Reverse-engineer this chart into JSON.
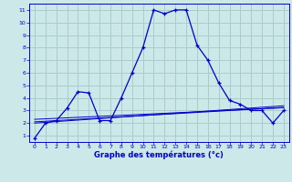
{
  "title": "Graphe des températures (°c)",
  "bg_color": "#cce8e8",
  "grid_color": "#aacccc",
  "line_color": "#0000cc",
  "x_values": [
    0,
    1,
    2,
    3,
    4,
    5,
    6,
    7,
    8,
    9,
    10,
    11,
    12,
    13,
    14,
    15,
    16,
    17,
    18,
    19,
    20,
    21,
    22,
    23
  ],
  "y_main": [
    0.8,
    2.0,
    2.2,
    3.2,
    4.5,
    4.4,
    2.2,
    2.2,
    4.0,
    6.0,
    8.0,
    11.0,
    10.7,
    11.0,
    11.0,
    8.2,
    7.0,
    5.2,
    3.8,
    3.5,
    3.0,
    3.0,
    2.0,
    3.0
  ],
  "y_line1": [
    2.0,
    2.06,
    2.12,
    2.18,
    2.24,
    2.3,
    2.36,
    2.42,
    2.48,
    2.54,
    2.6,
    2.66,
    2.72,
    2.78,
    2.84,
    2.9,
    2.96,
    3.02,
    3.08,
    3.14,
    3.2,
    3.26,
    3.32,
    3.38
  ],
  "y_line2": [
    2.1,
    2.15,
    2.2,
    2.25,
    2.3,
    2.35,
    2.4,
    2.45,
    2.5,
    2.55,
    2.6,
    2.65,
    2.7,
    2.75,
    2.8,
    2.85,
    2.9,
    2.95,
    3.0,
    3.05,
    3.1,
    3.15,
    3.2,
    3.25
  ],
  "y_line3": [
    2.3,
    2.34,
    2.38,
    2.42,
    2.46,
    2.5,
    2.54,
    2.58,
    2.62,
    2.66,
    2.7,
    2.74,
    2.78,
    2.82,
    2.86,
    2.9,
    2.94,
    2.98,
    3.02,
    3.06,
    3.1,
    3.14,
    3.18,
    3.22
  ],
  "xlim": [
    -0.5,
    23.5
  ],
  "ylim": [
    0.5,
    11.5
  ],
  "yticks": [
    1,
    2,
    3,
    4,
    5,
    6,
    7,
    8,
    9,
    10,
    11
  ],
  "xticks": [
    0,
    1,
    2,
    3,
    4,
    5,
    6,
    7,
    8,
    9,
    10,
    11,
    12,
    13,
    14,
    15,
    16,
    17,
    18,
    19,
    20,
    21,
    22,
    23
  ]
}
